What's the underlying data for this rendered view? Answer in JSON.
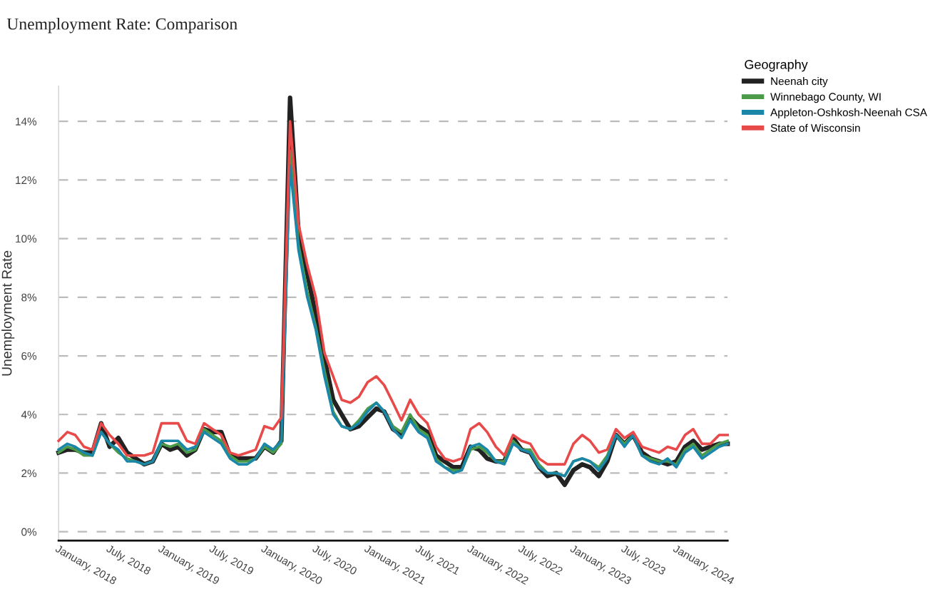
{
  "chart_data": {
    "type": "line",
    "title": "Unemployment Rate: Comparison",
    "ylabel": "Unemployment Rate",
    "legend_title": "Geography",
    "x": [
      "2018-01",
      "2018-02",
      "2018-03",
      "2018-04",
      "2018-05",
      "2018-06",
      "2018-07",
      "2018-08",
      "2018-09",
      "2018-10",
      "2018-11",
      "2018-12",
      "2019-01",
      "2019-02",
      "2019-03",
      "2019-04",
      "2019-05",
      "2019-06",
      "2019-07",
      "2019-08",
      "2019-09",
      "2019-10",
      "2019-11",
      "2019-12",
      "2020-01",
      "2020-02",
      "2020-03",
      "2020-04",
      "2020-05",
      "2020-06",
      "2020-07",
      "2020-08",
      "2020-09",
      "2020-10",
      "2020-11",
      "2020-12",
      "2021-01",
      "2021-02",
      "2021-03",
      "2021-04",
      "2021-05",
      "2021-06",
      "2021-07",
      "2021-08",
      "2021-09",
      "2021-10",
      "2021-11",
      "2021-12",
      "2022-01",
      "2022-02",
      "2022-03",
      "2022-04",
      "2022-05",
      "2022-06",
      "2022-07",
      "2022-08",
      "2022-09",
      "2022-10",
      "2022-11",
      "2022-12",
      "2023-01",
      "2023-02",
      "2023-03",
      "2023-04",
      "2023-05",
      "2023-06",
      "2023-07",
      "2023-08",
      "2023-09",
      "2023-10",
      "2023-11",
      "2023-12",
      "2024-01",
      "2024-02",
      "2024-03",
      "2024-04",
      "2024-05",
      "2024-06",
      "2024-07"
    ],
    "series": [
      {
        "name": "Neenah city",
        "color": "#222222",
        "values": [
          2.7,
          2.8,
          2.8,
          2.7,
          2.7,
          3.7,
          2.9,
          3.2,
          2.7,
          2.5,
          2.3,
          2.4,
          3.0,
          2.8,
          2.9,
          2.6,
          2.8,
          3.5,
          3.4,
          3.4,
          2.6,
          2.5,
          2.5,
          2.5,
          2.9,
          2.7,
          3.1,
          14.8,
          10.2,
          8.8,
          7.4,
          5.9,
          4.5,
          4.0,
          3.5,
          3.6,
          3.9,
          4.2,
          4.1,
          3.5,
          3.3,
          3.9,
          3.6,
          3.4,
          2.6,
          2.4,
          2.2,
          2.2,
          2.9,
          2.8,
          2.5,
          2.4,
          2.4,
          3.2,
          2.8,
          2.7,
          2.2,
          1.9,
          2.0,
          1.6,
          2.1,
          2.3,
          2.2,
          1.9,
          2.4,
          3.3,
          3.0,
          3.3,
          2.7,
          2.5,
          2.4,
          2.3,
          2.4,
          2.9,
          3.1,
          2.8,
          2.9,
          3.0,
          3.0
        ]
      },
      {
        "name": "Winnebago County, WI",
        "color": "#4a9a4a",
        "values": [
          2.7,
          2.9,
          2.8,
          2.6,
          2.6,
          3.4,
          3.0,
          2.7,
          2.5,
          2.4,
          2.3,
          2.4,
          3.0,
          2.9,
          3.0,
          2.7,
          2.8,
          3.5,
          3.3,
          3.1,
          2.6,
          2.4,
          2.4,
          2.5,
          2.9,
          2.7,
          3.0,
          13.0,
          9.8,
          8.2,
          7.0,
          5.5,
          4.1,
          3.6,
          3.5,
          3.8,
          4.2,
          4.4,
          4.1,
          3.6,
          3.4,
          4.0,
          3.5,
          3.3,
          2.5,
          2.2,
          2.1,
          2.1,
          2.8,
          2.9,
          2.7,
          2.4,
          2.4,
          3.1,
          2.8,
          2.8,
          2.3,
          2.0,
          2.0,
          1.9,
          2.4,
          2.5,
          2.4,
          2.2,
          2.6,
          3.3,
          3.0,
          3.3,
          2.6,
          2.5,
          2.4,
          2.4,
          2.3,
          2.8,
          3.0,
          2.6,
          2.8,
          3.0,
          3.1
        ]
      },
      {
        "name": "Appleton-Oshkosh-Neenah CSA",
        "color": "#1a86a8",
        "values": [
          2.8,
          3.0,
          2.9,
          2.7,
          2.6,
          3.4,
          3.0,
          2.8,
          2.4,
          2.4,
          2.3,
          2.4,
          3.1,
          3.1,
          3.1,
          2.8,
          2.9,
          3.4,
          3.2,
          3.0,
          2.5,
          2.3,
          2.3,
          2.5,
          3.0,
          2.8,
          3.1,
          12.5,
          9.6,
          8.0,
          6.9,
          5.3,
          4.0,
          3.6,
          3.5,
          3.7,
          4.1,
          4.4,
          4.1,
          3.5,
          3.2,
          3.8,
          3.4,
          3.2,
          2.4,
          2.2,
          2.0,
          2.1,
          2.9,
          3.0,
          2.8,
          2.4,
          2.3,
          3.0,
          2.8,
          2.7,
          2.2,
          2.0,
          2.0,
          1.9,
          2.4,
          2.5,
          2.4,
          2.1,
          2.5,
          3.3,
          2.9,
          3.3,
          2.6,
          2.4,
          2.3,
          2.5,
          2.2,
          2.7,
          2.9,
          2.5,
          2.7,
          2.9,
          3.0
        ]
      },
      {
        "name": "State of Wisconsin",
        "color": "#e84a4a",
        "values": [
          3.1,
          3.4,
          3.3,
          2.9,
          2.8,
          3.7,
          3.3,
          3.0,
          2.6,
          2.6,
          2.6,
          2.7,
          3.7,
          3.7,
          3.7,
          3.1,
          3.0,
          3.7,
          3.5,
          3.3,
          2.7,
          2.6,
          2.7,
          2.8,
          3.6,
          3.5,
          3.9,
          14.0,
          10.5,
          9.1,
          8.0,
          6.1,
          5.3,
          4.5,
          4.4,
          4.6,
          5.1,
          5.3,
          5.0,
          4.4,
          3.8,
          4.5,
          4.0,
          3.7,
          2.9,
          2.5,
          2.4,
          2.5,
          3.5,
          3.7,
          3.4,
          2.9,
          2.6,
          3.3,
          3.1,
          3.0,
          2.5,
          2.3,
          2.3,
          2.3,
          3.0,
          3.3,
          3.1,
          2.7,
          2.8,
          3.5,
          3.2,
          3.4,
          2.9,
          2.8,
          2.7,
          2.9,
          2.8,
          3.3,
          3.5,
          3.0,
          3.0,
          3.3,
          3.3
        ]
      }
    ],
    "xlim": [
      "2018-01",
      "2024-07"
    ],
    "xticks": [
      {
        "value": "2018-01",
        "label": "January, 2018"
      },
      {
        "value": "2018-07",
        "label": "July, 2018"
      },
      {
        "value": "2019-01",
        "label": "January, 2019"
      },
      {
        "value": "2019-07",
        "label": "July, 2019"
      },
      {
        "value": "2020-01",
        "label": "January, 2020"
      },
      {
        "value": "2020-07",
        "label": "July, 2020"
      },
      {
        "value": "2021-01",
        "label": "January, 2021"
      },
      {
        "value": "2021-07",
        "label": "July, 2021"
      },
      {
        "value": "2022-01",
        "label": "January, 2022"
      },
      {
        "value": "2022-07",
        "label": "July, 2022"
      },
      {
        "value": "2023-01",
        "label": "January, 2023"
      },
      {
        "value": "2023-07",
        "label": "July, 2023"
      },
      {
        "value": "2024-01",
        "label": "January, 2024"
      }
    ],
    "ylim": [
      -0.3,
      15.2
    ],
    "yticks": [
      {
        "value": 0,
        "label": "0%"
      },
      {
        "value": 2,
        "label": "2%"
      },
      {
        "value": 4,
        "label": "4%"
      },
      {
        "value": 6,
        "label": "6%"
      },
      {
        "value": 8,
        "label": "8%"
      },
      {
        "value": 10,
        "label": "10%"
      },
      {
        "value": 12,
        "label": "12%"
      },
      {
        "value": 14,
        "label": "14%"
      }
    ],
    "grid": "y",
    "legend": "top right",
    "marker": "none",
    "line_style": "solid"
  }
}
